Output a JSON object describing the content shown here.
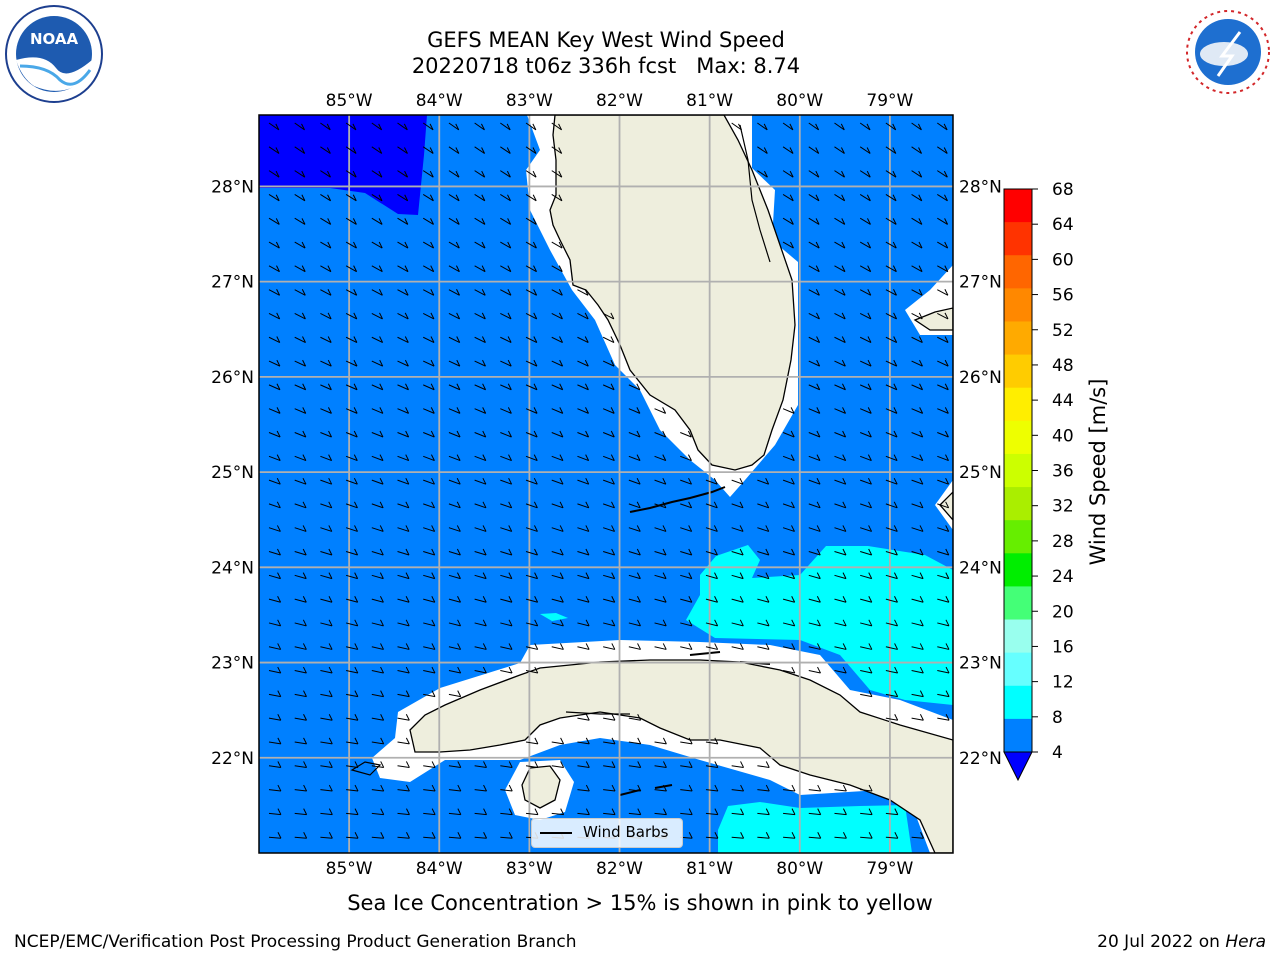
{
  "title": {
    "line1": "GEFS MEAN Key West Wind Speed",
    "line2": "20220718 t06z 336h fcst   Max: 8.74"
  },
  "map": {
    "lon_ticks": [
      "85°W",
      "84°W",
      "83°W",
      "82°W",
      "81°W",
      "80°W",
      "79°W"
    ],
    "lat_ticks": [
      "28°N",
      "27°N",
      "26°N",
      "25°N",
      "24°N",
      "23°N",
      "22°N"
    ],
    "extent": {
      "lon_min": -86.0,
      "lon_max": -78.3,
      "lat_min": 21.0,
      "lat_max": 28.75
    },
    "grid": true,
    "colors": {
      "ocean_base": "#0080ff",
      "deep_blue": "#0000ff",
      "cyan": "#00ffff",
      "land": "#eeeedd",
      "grid": "#b0b0b0"
    }
  },
  "legend": {
    "label": "Wind Barbs",
    "placement": "lower-center"
  },
  "colorbar": {
    "label": "Wind Speed [m/s]",
    "ticks": [
      "68",
      "64",
      "60",
      "56",
      "52",
      "48",
      "44",
      "40",
      "36",
      "32",
      "28",
      "24",
      "20",
      "16",
      "12",
      "8",
      "4"
    ],
    "colors": [
      "#ff0000",
      "#ff3300",
      "#ff6600",
      "#ff8800",
      "#ffaa00",
      "#ffcc00",
      "#ffee00",
      "#eeff00",
      "#ccff00",
      "#aaee00",
      "#66ee00",
      "#00ee00",
      "#44ff77",
      "#99ffee",
      "#66ffff",
      "#00ffff",
      "#0080ff"
    ],
    "extend_color": "#0000ff"
  },
  "footnote": "Sea Ice Concentration > 15% is shown in pink to yellow",
  "footer": {
    "left": "NCEP/EMC/Verification Post Processing Product Generation Branch",
    "right_date": "20 Jul 2022 on ",
    "right_machine": "Hera"
  },
  "logos": {
    "left": "NOAA",
    "right": "NATIONAL WEATHER SERVICE"
  }
}
